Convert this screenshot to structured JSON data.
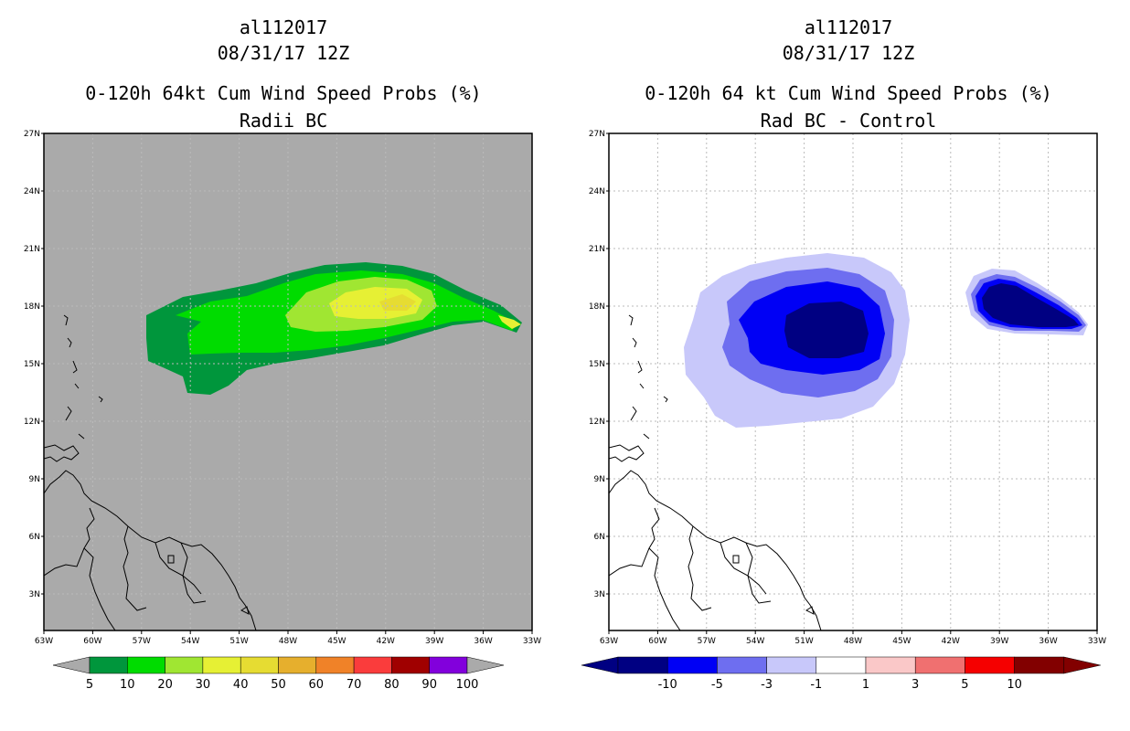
{
  "left_panel": {
    "storm_id": "al112017",
    "datetime": "08/31/17 12Z",
    "product": "0-120h 64kt Cum Wind Speed Probs (%)",
    "subtitle": "Radii BC",
    "colorbar": {
      "colors": [
        "#00963c",
        "#00dc00",
        "#a0e632",
        "#e6f034",
        "#e6dc32",
        "#e6af2d",
        "#f08228",
        "#fa3c3c",
        "#a00000",
        "#8200dc"
      ],
      "labels": [
        "5",
        "10",
        "20",
        "30",
        "40",
        "50",
        "60",
        "70",
        "80",
        "90",
        "100"
      ]
    }
  },
  "right_panel": {
    "storm_id": "al112017",
    "datetime": "08/31/17 12Z",
    "product": "0-120h 64 kt Cum Wind Speed Probs (%)",
    "subtitle": "Rad BC - Control",
    "colorbar": {
      "colors": [
        "#000082",
        "#0000f5",
        "#6e6ef0",
        "#c8c8fa",
        "#ffffff",
        "#fac8c8",
        "#f07070",
        "#f50000",
        "#820000"
      ],
      "labels": [
        "-10",
        "-5",
        "-3",
        "-1",
        "1",
        "3",
        "5",
        "10"
      ]
    }
  },
  "lat_labels": [
    "27N",
    "24N",
    "21N",
    "18N",
    "15N",
    "12N",
    "9N",
    "6N",
    "3N"
  ],
  "lon_labels": [
    "63W",
    "60W",
    "57W",
    "54W",
    "51W",
    "48W",
    "45W",
    "42W",
    "39W",
    "36W",
    "33W"
  ],
  "colors": {
    "land_ocean_fill": "#aaaaaa",
    "grid": "#bbbbbb"
  }
}
